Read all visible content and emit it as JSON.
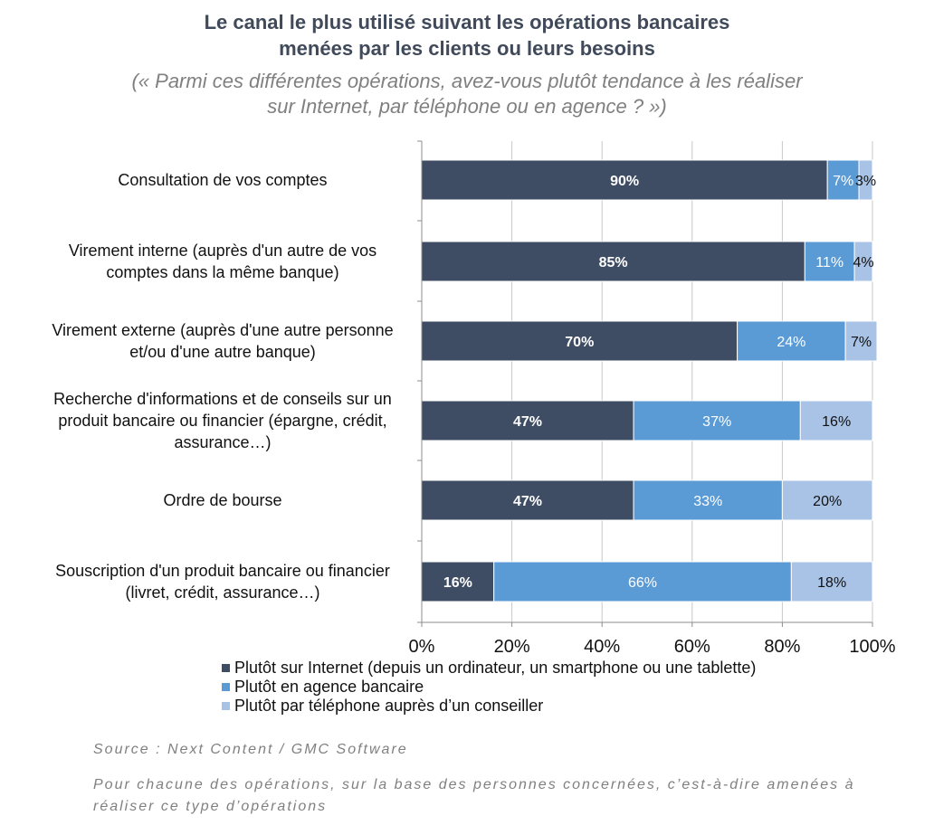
{
  "title_line1": "Le canal le plus utilisé suivant les opérations bancaires",
  "title_line2": "menées par les clients ou leurs besoins",
  "subtitle_line1": "(« Parmi ces différentes opérations, avez-vous plutôt tendance à les réaliser",
  "subtitle_line2": "sur Internet, par téléphone ou en agence ? »)",
  "source": "Source : Next Content / GMC Software",
  "note": "Pour chacune des opérations, sur la base des personnes concernées, c’est-à-dire amenées à réaliser ce type d’opérations",
  "colors": {
    "internet": "#3f4d64",
    "agence": "#5b9bd5",
    "telephone": "#a9c3e6"
  },
  "chart_data": {
    "type": "bar",
    "orientation": "horizontal",
    "stacked": true,
    "categories": [
      [
        "Consultation de vos comptes"
      ],
      [
        "Virement interne (auprès d'un autre de vos",
        "comptes dans la même banque)"
      ],
      [
        "Virement externe (auprès d'une autre personne",
        "et/ou d'une autre banque)"
      ],
      [
        "Recherche d'informations et de conseils sur un",
        "produit bancaire ou financier (épargne, crédit,",
        "assurance…)"
      ],
      [
        "Ordre de bourse"
      ],
      [
        "Souscription d'un produit bancaire ou financier",
        "(livret, crédit, assurance…)"
      ]
    ],
    "series": [
      {
        "name": "Plutôt sur Internet (depuis un ordinateur, un smartphone ou une tablette)",
        "color_key": "internet",
        "values": [
          90,
          85,
          70,
          47,
          47,
          16
        ],
        "labels": [
          "90%",
          "85%",
          "70%",
          "47%",
          "47%",
          "16%"
        ]
      },
      {
        "name": "Plutôt en agence bancaire",
        "color_key": "agence",
        "values": [
          7,
          11,
          24,
          37,
          33,
          66
        ],
        "labels": [
          "7%",
          "11%",
          "24%",
          "37%",
          "33%",
          "66%"
        ]
      },
      {
        "name": "Plutôt par téléphone auprès d’un conseiller",
        "color_key": "telephone",
        "values": [
          3,
          4,
          7,
          16,
          20,
          18
        ],
        "labels": [
          "3%",
          "4%",
          "7%",
          "16%",
          "20%",
          "18%"
        ]
      }
    ],
    "xlim": [
      0,
      100
    ],
    "xticks": [
      "0%",
      "20%",
      "40%",
      "60%",
      "80%",
      "100%"
    ],
    "grid": true,
    "legend_position": "bottom"
  }
}
